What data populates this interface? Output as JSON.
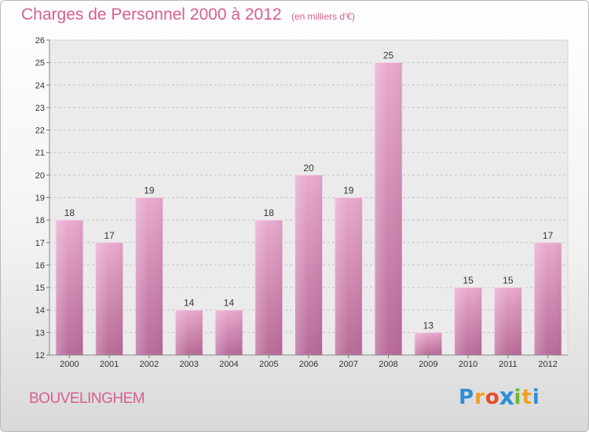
{
  "header": {
    "title": "Charges de Personnel 2000 à 2012",
    "subtitle": "(en milliers d'€)"
  },
  "footer": {
    "location": "BOUVELINGHEM",
    "logo_letters": [
      "P",
      "r",
      "o",
      "x",
      "i",
      "t",
      "i"
    ],
    "logo_colors": [
      "#2e8fd6",
      "#f0a020",
      "#e84a2a",
      "#2e8fd6",
      "#6ab82e",
      "#f0a020",
      "#2e8fd6"
    ]
  },
  "chart_data": {
    "type": "bar",
    "categories": [
      "2000",
      "2001",
      "2002",
      "2003",
      "2004",
      "2005",
      "2006",
      "2007",
      "2008",
      "2009",
      "2010",
      "2011",
      "2012"
    ],
    "values": [
      18,
      17,
      19,
      14,
      14,
      18,
      20,
      19,
      25,
      13,
      15,
      15,
      17
    ],
    "ylim": [
      12,
      26
    ],
    "yticks": [
      12,
      13,
      14,
      15,
      16,
      17,
      18,
      19,
      20,
      21,
      22,
      23,
      24,
      25,
      26
    ],
    "grid": "horizontal-dashed",
    "bar_color": "#e0a3c6"
  }
}
